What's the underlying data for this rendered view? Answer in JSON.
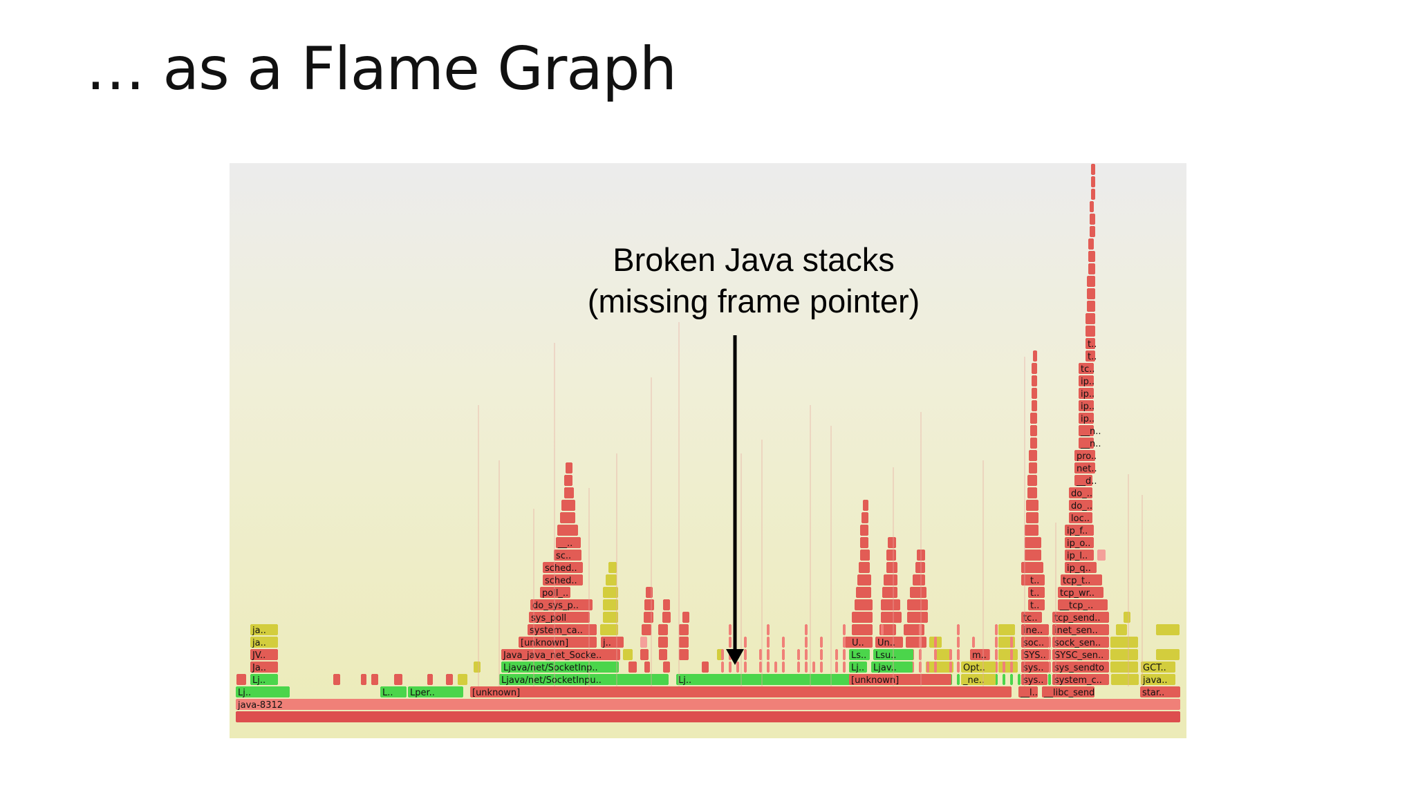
{
  "slide": {
    "title": "… as a Flame Graph"
  },
  "annotation": {
    "line1": "Broken Java stacks",
    "line2": "(missing frame pointer)"
  },
  "colors": {
    "red": "#e25c55",
    "salmon": "#f08078",
    "pink": "#f4a09a",
    "green": "#4bd54b",
    "yellow": "#d3cd3d",
    "root": "#dd4e4e"
  },
  "flame": {
    "frames": [
      {
        "label": "java-8312",
        "color": "salmon"
      },
      {
        "label": "Lj..",
        "color": "green"
      },
      {
        "label": "L..",
        "color": "green"
      },
      {
        "label": "Lper..",
        "color": "green"
      },
      {
        "label": "[unknown]",
        "color": "red"
      },
      {
        "label": "__l..",
        "color": "red"
      },
      {
        "label": "__libc_send",
        "color": "red"
      },
      {
        "label": "star..",
        "color": "red"
      },
      {
        "label": "Lj..",
        "color": "green"
      },
      {
        "label": "Ljava/net/SocketInpu..",
        "color": "green"
      },
      {
        "label": "Lj..",
        "color": "green"
      },
      {
        "label": "[unknown]",
        "color": "red"
      },
      {
        "label": "_ne..",
        "color": "yellow"
      },
      {
        "label": "sys..",
        "color": "red"
      },
      {
        "label": "system_c..",
        "color": "red"
      },
      {
        "label": "java..",
        "color": "yellow"
      },
      {
        "label": "Ja..",
        "color": "red"
      },
      {
        "label": "Ljava/net/SocketInp..",
        "color": "green"
      },
      {
        "label": "Lj..",
        "color": "green"
      },
      {
        "label": "Ljav..",
        "color": "green"
      },
      {
        "label": "Opt..",
        "color": "yellow"
      },
      {
        "label": "sys..",
        "color": "red"
      },
      {
        "label": "sys_sendto",
        "color": "red"
      },
      {
        "label": "GCT..",
        "color": "yellow"
      },
      {
        "label": "JV..",
        "color": "red"
      },
      {
        "label": "Java_java_net_Socke..",
        "color": "red"
      },
      {
        "label": "Ls..",
        "color": "green"
      },
      {
        "label": "Lsu..",
        "color": "green"
      },
      {
        "label": "m..",
        "color": "red"
      },
      {
        "label": "SYS..",
        "color": "red"
      },
      {
        "label": "SYSC_sen..",
        "color": "red"
      },
      {
        "label": "ja..",
        "color": "yellow"
      },
      {
        "label": "[unknown]",
        "color": "red"
      },
      {
        "label": "j..",
        "color": "red"
      },
      {
        "label": "U..",
        "color": "red"
      },
      {
        "label": "Un..",
        "color": "red"
      },
      {
        "label": "soc..",
        "color": "red"
      },
      {
        "label": "sock_sen..",
        "color": "red"
      },
      {
        "label": "ja..",
        "color": "yellow"
      },
      {
        "label": "system_ca..",
        "color": "red"
      },
      {
        "label": "ine..",
        "color": "red"
      },
      {
        "label": "inet_sen..",
        "color": "red"
      },
      {
        "label": "sys_poll",
        "color": "red"
      },
      {
        "label": "tc..",
        "color": "red"
      },
      {
        "label": "tcp_send..",
        "color": "red"
      },
      {
        "label": "do_sys_p..",
        "color": "red"
      },
      {
        "label": "t..",
        "color": "red"
      },
      {
        "label": "__tcp_..",
        "color": "red"
      },
      {
        "label": "poll_..",
        "color": "red"
      },
      {
        "label": "t..",
        "color": "red"
      },
      {
        "label": "tcp_wr..",
        "color": "red"
      },
      {
        "label": "sched..",
        "color": "red"
      },
      {
        "label": "t..",
        "color": "red"
      },
      {
        "label": "tcp_t..",
        "color": "red"
      },
      {
        "label": "sched..",
        "color": "red"
      },
      {
        "label": "ip_q..",
        "color": "red"
      },
      {
        "label": "sc..",
        "color": "red"
      },
      {
        "label": "ip_l..",
        "color": "red"
      },
      {
        "label": "__..",
        "color": "red"
      },
      {
        "label": "ip_o..",
        "color": "red"
      },
      {
        "label": "ip_f..",
        "color": "red"
      },
      {
        "label": "loc..",
        "color": "red"
      },
      {
        "label": "do_..",
        "color": "red"
      },
      {
        "label": "do_..",
        "color": "red"
      },
      {
        "label": "__d..",
        "color": "red"
      },
      {
        "label": "net..",
        "color": "red"
      },
      {
        "label": "pro..",
        "color": "red"
      },
      {
        "label": "__n..",
        "color": "red"
      },
      {
        "label": "__n..",
        "color": "red"
      },
      {
        "label": "ip..",
        "color": "red"
      },
      {
        "label": "ip..",
        "color": "red"
      },
      {
        "label": "ip..",
        "color": "red"
      },
      {
        "label": "ip..",
        "color": "red"
      },
      {
        "label": "tc..",
        "color": "red"
      },
      {
        "label": "t..",
        "color": "red"
      },
      {
        "label": "t..",
        "color": "red"
      }
    ]
  }
}
